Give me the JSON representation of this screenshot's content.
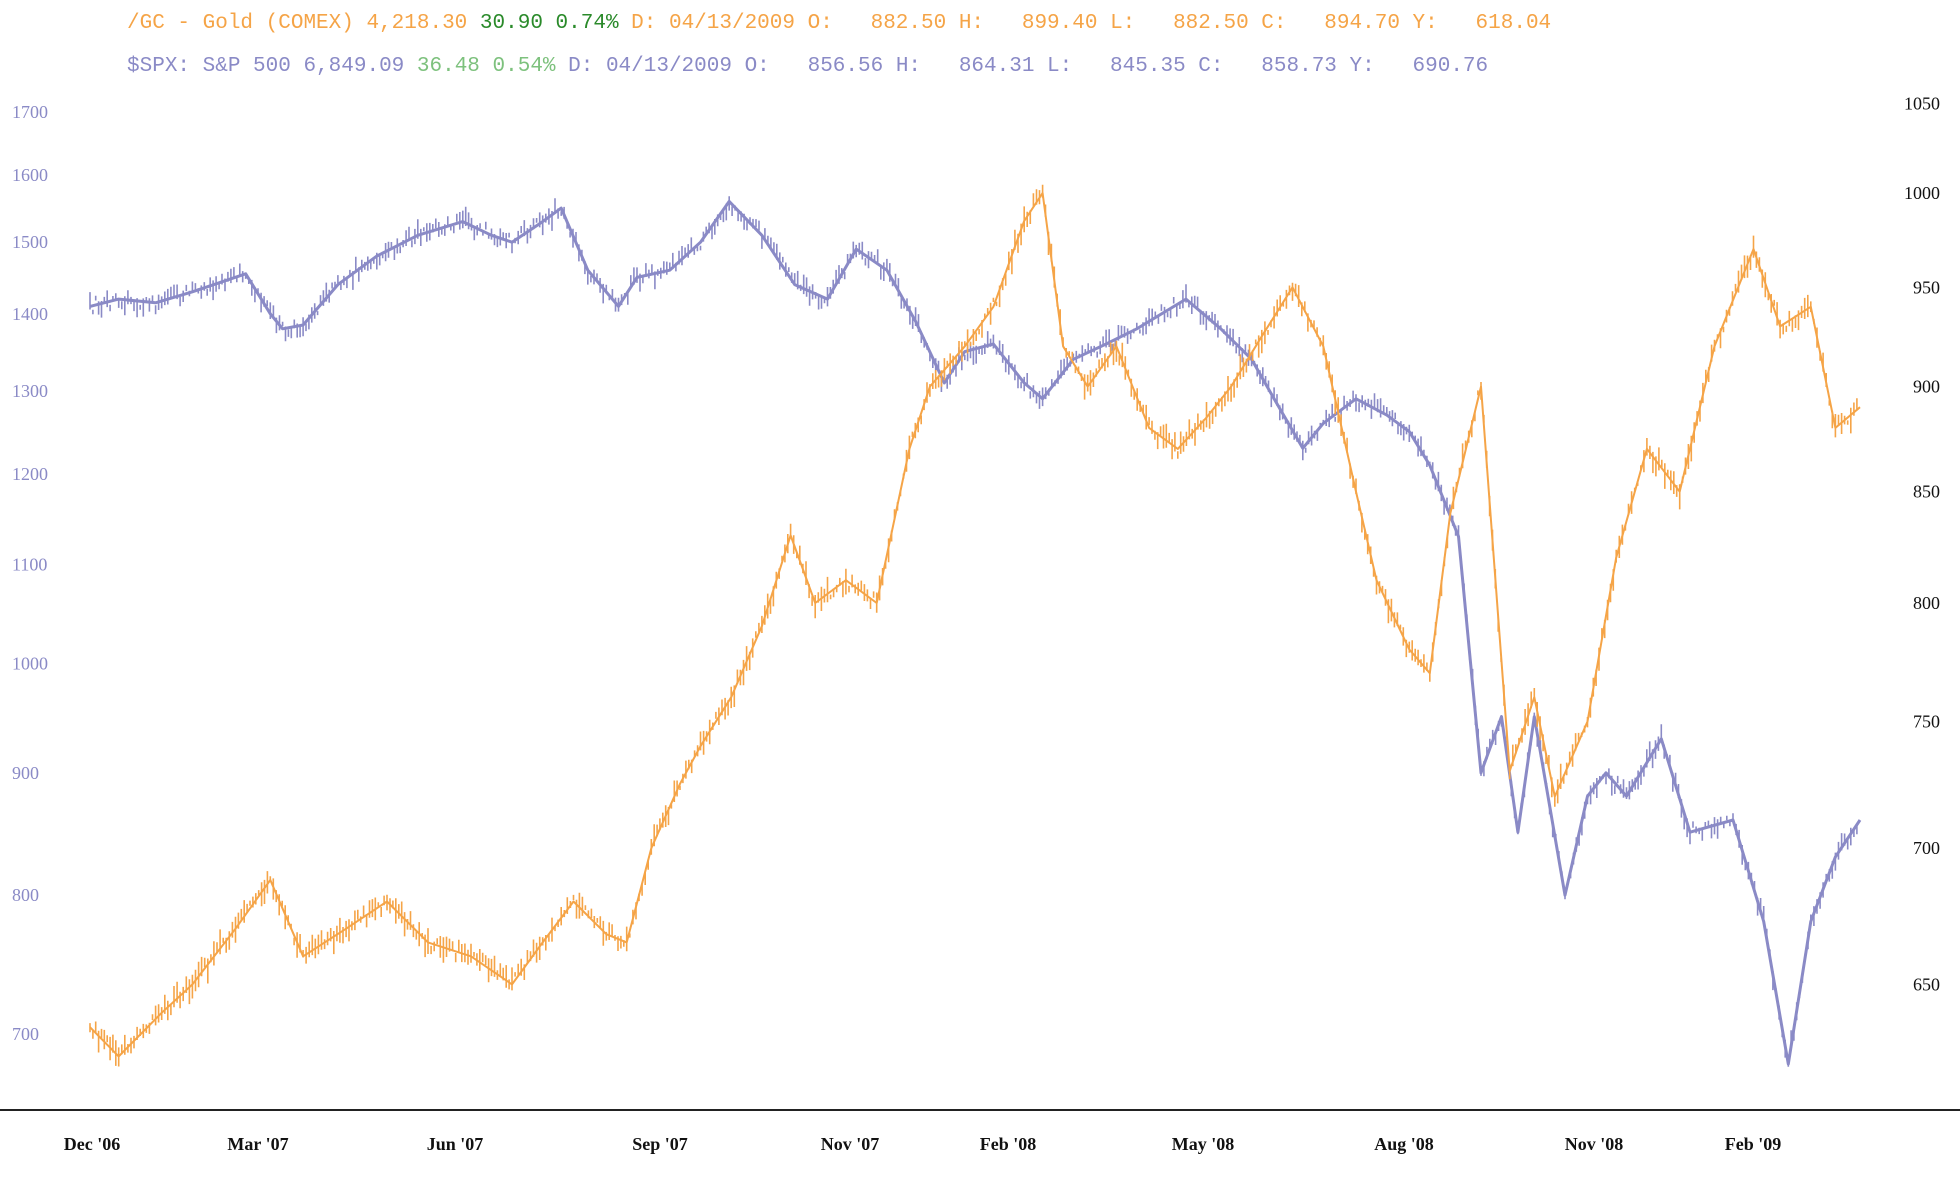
{
  "colors": {
    "gold": "#f5a447",
    "spx": "#8a8ac6",
    "positive_gold": "#2a8a2a",
    "positive_spx": "#7dc17d",
    "axis": "#222222",
    "right_tick": "#111111"
  },
  "header": {
    "gold": {
      "symbol": "/GC - Gold (COMEX)",
      "last": "4,218.30",
      "change": "30.90",
      "change_pct": "0.74%",
      "date": "D: 04/13/2009",
      "open": "O:   882.50",
      "high": "H:   899.40",
      "low": "L:   882.50",
      "close": "C:   894.70",
      "y": "Y:   618.04"
    },
    "spx": {
      "symbol": "$SPX: S&P 500",
      "last": "6,849.09",
      "change": "36.48",
      "change_pct": "0.54%",
      "date": "D: 04/13/2009",
      "open": "O:   856.56",
      "high": "H:   864.31",
      "low": "L:   845.35",
      "close": "C:   858.73",
      "y": "Y:   690.76"
    }
  },
  "chart_data": {
    "type": "line",
    "title": "",
    "xlabel": "",
    "ylabel": "",
    "x_ticks": [
      "Dec '06",
      "Mar '07",
      "Jun '07",
      "Sep '07",
      "Nov '07",
      "Feb '08",
      "May '08",
      "Aug '08",
      "Nov '08",
      "Feb '09"
    ],
    "left_axis": {
      "scale": "log",
      "ticks": [
        700,
        800,
        900,
        1000,
        1100,
        1200,
        1300,
        1400,
        1500,
        1600,
        1700
      ],
      "range": [
        660,
        1720
      ]
    },
    "right_axis": {
      "scale": "log",
      "ticks": [
        650,
        700,
        750,
        800,
        850,
        900,
        950,
        1000,
        1050
      ],
      "range": [
        612,
        1052
      ]
    },
    "series": [
      {
        "name": "$SPX: S&P 500",
        "axis": "left",
        "x": [
          "2006-12-01",
          "2006-12-15",
          "2007-01-02",
          "2007-01-20",
          "2007-02-15",
          "2007-02-27",
          "2007-03-05",
          "2007-03-15",
          "2007-04-01",
          "2007-04-20",
          "2007-05-10",
          "2007-06-01",
          "2007-06-15",
          "2007-06-25",
          "2007-07-10",
          "2007-07-19",
          "2007-08-01",
          "2007-08-16",
          "2007-08-25",
          "2007-09-10",
          "2007-09-25",
          "2007-10-09",
          "2007-10-25",
          "2007-11-10",
          "2007-11-26",
          "2007-12-10",
          "2007-12-25",
          "2008-01-08",
          "2008-01-22",
          "2008-02-01",
          "2008-02-15",
          "2008-03-01",
          "2008-03-10",
          "2008-03-25",
          "2008-04-10",
          "2008-04-25",
          "2008-05-19",
          "2008-06-05",
          "2008-06-20",
          "2008-07-01",
          "2008-07-15",
          "2008-07-25",
          "2008-08-10",
          "2008-08-25",
          "2008-09-05",
          "2008-09-15",
          "2008-09-29",
          "2008-10-10",
          "2008-10-20",
          "2008-10-28",
          "2008-11-05",
          "2008-11-20",
          "2008-12-01",
          "2008-12-10",
          "2008-12-20",
          "2009-01-06",
          "2009-01-20",
          "2009-02-10",
          "2009-02-25",
          "2009-03-09",
          "2009-03-20",
          "2009-04-01",
          "2009-04-13"
        ],
        "values": [
          1410,
          1420,
          1415,
          1430,
          1455,
          1400,
          1380,
          1385,
          1440,
          1480,
          1510,
          1530,
          1510,
          1500,
          1530,
          1550,
          1460,
          1410,
          1450,
          1460,
          1500,
          1560,
          1510,
          1440,
          1420,
          1490,
          1460,
          1390,
          1310,
          1350,
          1360,
          1310,
          1290,
          1340,
          1360,
          1380,
          1420,
          1380,
          1340,
          1290,
          1230,
          1260,
          1290,
          1270,
          1250,
          1210,
          1130,
          900,
          950,
          850,
          950,
          800,
          880,
          900,
          880,
          930,
          850,
          860,
          780,
          680,
          780,
          830,
          860
        ]
      },
      {
        "name": "/GC - Gold (COMEX)",
        "axis": "right",
        "x": [
          "2006-12-01",
          "2006-12-15",
          "2007-01-05",
          "2007-01-20",
          "2007-02-10",
          "2007-02-27",
          "2007-03-15",
          "2007-04-05",
          "2007-04-25",
          "2007-05-15",
          "2007-06-05",
          "2007-06-25",
          "2007-07-10",
          "2007-07-25",
          "2007-08-10",
          "2007-08-20",
          "2007-09-01",
          "2007-09-15",
          "2007-09-25",
          "2007-10-10",
          "2007-10-25",
          "2007-11-08",
          "2007-11-20",
          "2007-12-05",
          "2007-12-20",
          "2008-01-05",
          "2008-01-15",
          "2008-02-01",
          "2008-02-15",
          "2008-03-01",
          "2008-03-10",
          "2008-03-20",
          "2008-04-01",
          "2008-04-15",
          "2008-05-01",
          "2008-05-15",
          "2008-05-29",
          "2008-06-10",
          "2008-06-25",
          "2008-07-10",
          "2008-07-25",
          "2008-08-10",
          "2008-08-20",
          "2008-09-05",
          "2008-09-15",
          "2008-09-25",
          "2008-10-10",
          "2008-10-24",
          "2008-11-05",
          "2008-11-15",
          "2008-12-01",
          "2008-12-15",
          "2008-12-30",
          "2009-01-15",
          "2009-02-01",
          "2009-02-20",
          "2009-03-05",
          "2009-03-20",
          "2009-04-01",
          "2009-04-13"
        ],
        "values": [
          635,
          625,
          640,
          650,
          670,
          688,
          660,
          670,
          680,
          665,
          660,
          650,
          665,
          680,
          668,
          665,
          700,
          725,
          740,
          760,
          790,
          830,
          800,
          810,
          800,
          870,
          900,
          920,
          940,
          985,
          1000,
          920,
          900,
          920,
          880,
          870,
          885,
          900,
          925,
          950,
          920,
          850,
          810,
          780,
          770,
          840,
          900,
          730,
          760,
          720,
          750,
          820,
          870,
          850,
          920,
          970,
          930,
          940,
          880,
          890
        ]
      }
    ]
  }
}
